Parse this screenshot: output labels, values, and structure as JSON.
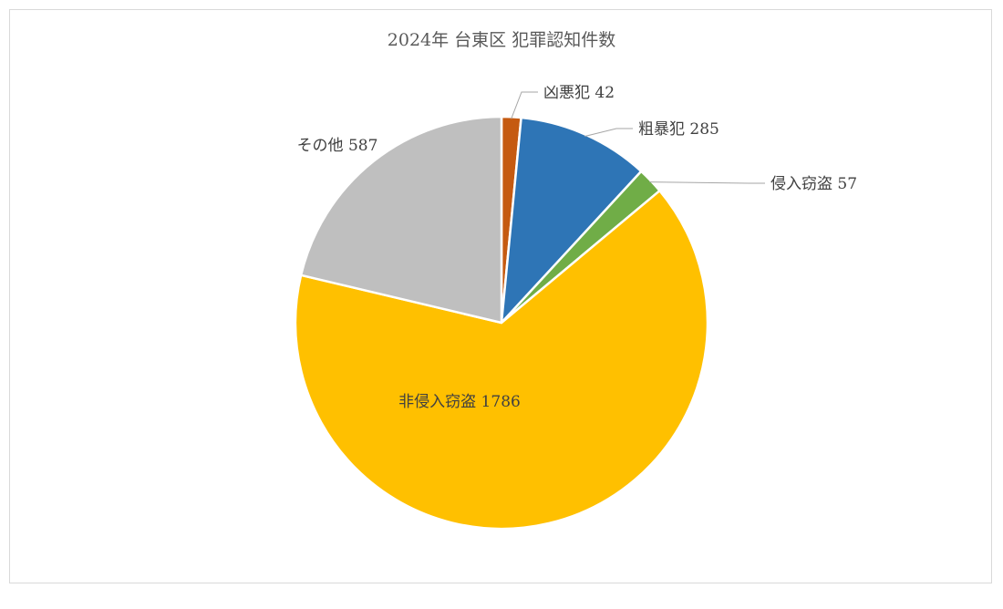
{
  "chart_data": {
    "type": "pie",
    "title": "2024年 台東区 犯罪認知件数",
    "slices": [
      {
        "name": "凶悪犯",
        "value": 42,
        "color": "#c55a11",
        "label": "凶悪犯 42"
      },
      {
        "name": "粗暴犯",
        "value": 285,
        "color": "#2e75b6",
        "label": "粗暴犯 285"
      },
      {
        "name": "侵入窃盗",
        "value": 57,
        "color": "#70ad47",
        "label": "侵入窃盗 57"
      },
      {
        "name": "非侵入窃盗",
        "value": 1786,
        "color": "#ffc000",
        "label": "非侵入窃盗 1786"
      },
      {
        "name": "その他",
        "value": 587,
        "color": "#bfbfbf",
        "label": "その他 587"
      }
    ],
    "legend": "none"
  }
}
